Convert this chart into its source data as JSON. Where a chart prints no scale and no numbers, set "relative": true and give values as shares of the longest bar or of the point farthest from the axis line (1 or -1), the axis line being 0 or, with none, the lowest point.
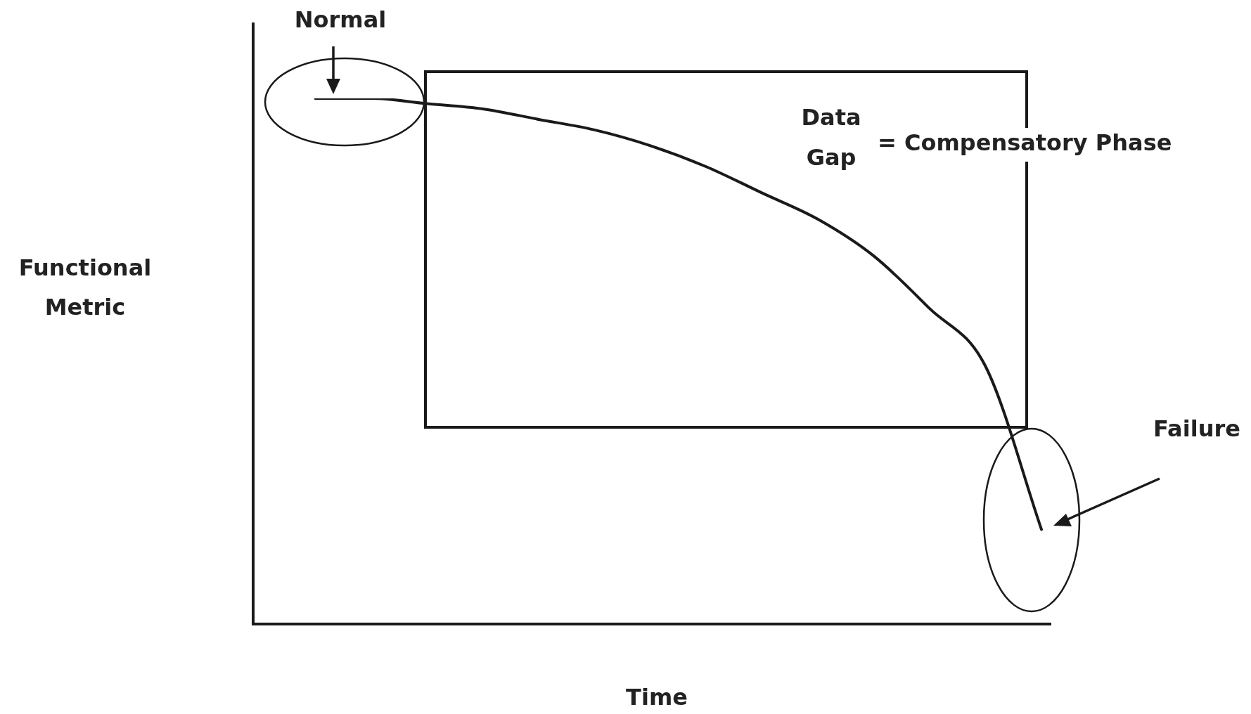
{
  "chart_data": {
    "type": "line",
    "xlabel": "Time",
    "ylabel": "Functional Metric",
    "relative": true,
    "legend": false,
    "marker": "none",
    "color": "#1a1a1a",
    "categories": [
      null,
      null,
      null,
      null,
      null,
      null,
      null,
      null,
      null,
      null,
      null,
      null,
      null,
      null,
      null
    ],
    "values": [
      null,
      1.0,
      1.0,
      0.99,
      0.98,
      0.96,
      0.94,
      0.91,
      0.87,
      0.82,
      0.77,
      0.7,
      0.6,
      0.49,
      0.18
    ],
    "annotations": [
      "Normal",
      "Data Gap",
      "= Compensatory Phase",
      "Failure"
    ]
  }
}
